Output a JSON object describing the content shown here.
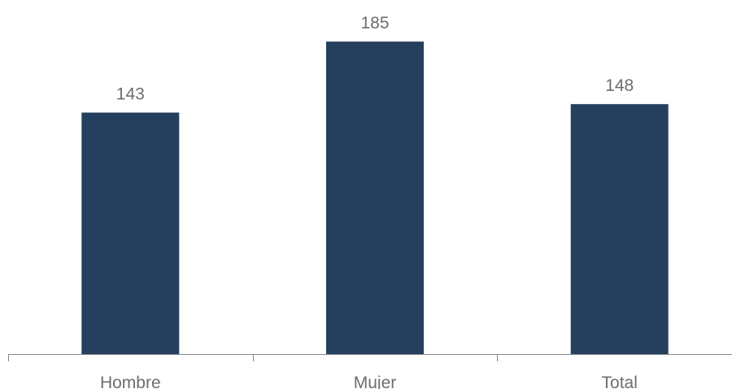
{
  "chart_data": {
    "type": "bar",
    "title": "",
    "xlabel": "",
    "ylabel": "",
    "categories": [
      "Hombre",
      "Mujer",
      "Total"
    ],
    "values": [
      143,
      185,
      148
    ],
    "data_labels": [
      "143",
      "185",
      "148"
    ],
    "ylim": [
      0,
      200
    ],
    "grid": false,
    "legend": "none",
    "colors": {
      "bar": "#253f5e",
      "axis": "#888888",
      "text": "#6d6d6d"
    }
  }
}
